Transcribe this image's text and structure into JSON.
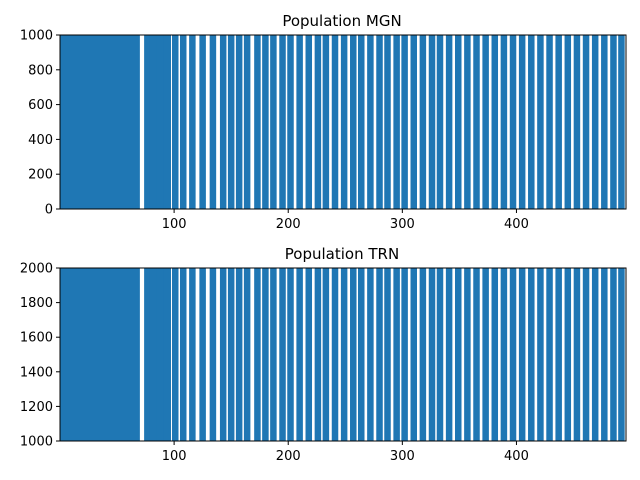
{
  "chart_data": [
    {
      "type": "scatter",
      "subtype": "raster",
      "title": "Population MGN",
      "xlabel": "",
      "ylabel": "",
      "xlim": [
        0,
        496
      ],
      "ylim": [
        0,
        1000
      ],
      "xticks": [
        100,
        200,
        300,
        400
      ],
      "yticks": [
        0,
        200,
        400,
        600,
        800,
        1000
      ],
      "color": "#1f77b4",
      "dense_region": [
        0,
        70
      ],
      "burst_times": [
        77,
        82,
        88,
        94,
        101,
        108,
        116,
        125,
        134,
        143,
        150,
        157,
        164,
        173,
        180,
        187,
        195,
        202,
        210,
        218,
        226,
        233,
        241,
        249,
        257,
        264,
        272,
        280,
        287,
        295,
        302,
        310,
        318,
        326,
        333,
        341,
        349,
        357,
        365,
        373,
        381,
        389,
        397,
        405,
        413,
        421,
        429,
        437,
        445,
        453,
        461,
        469,
        477,
        485,
        492
      ]
    },
    {
      "type": "scatter",
      "subtype": "raster",
      "title": "Population TRN",
      "xlabel": "",
      "ylabel": "",
      "xlim": [
        0,
        496
      ],
      "ylim": [
        1000,
        2000
      ],
      "xticks": [
        100,
        200,
        300,
        400
      ],
      "yticks": [
        1000,
        1200,
        1400,
        1600,
        1800,
        2000
      ],
      "color": "#1f77b4",
      "dense_region": [
        0,
        70
      ],
      "burst_times": [
        77,
        82,
        88,
        94,
        101,
        108,
        116,
        125,
        134,
        143,
        150,
        157,
        164,
        173,
        180,
        187,
        195,
        202,
        210,
        218,
        226,
        233,
        241,
        249,
        257,
        264,
        272,
        280,
        287,
        295,
        302,
        310,
        318,
        326,
        333,
        341,
        349,
        357,
        365,
        373,
        381,
        389,
        397,
        405,
        413,
        421,
        429,
        437,
        445,
        453,
        461,
        469,
        477,
        485,
        492
      ]
    }
  ]
}
